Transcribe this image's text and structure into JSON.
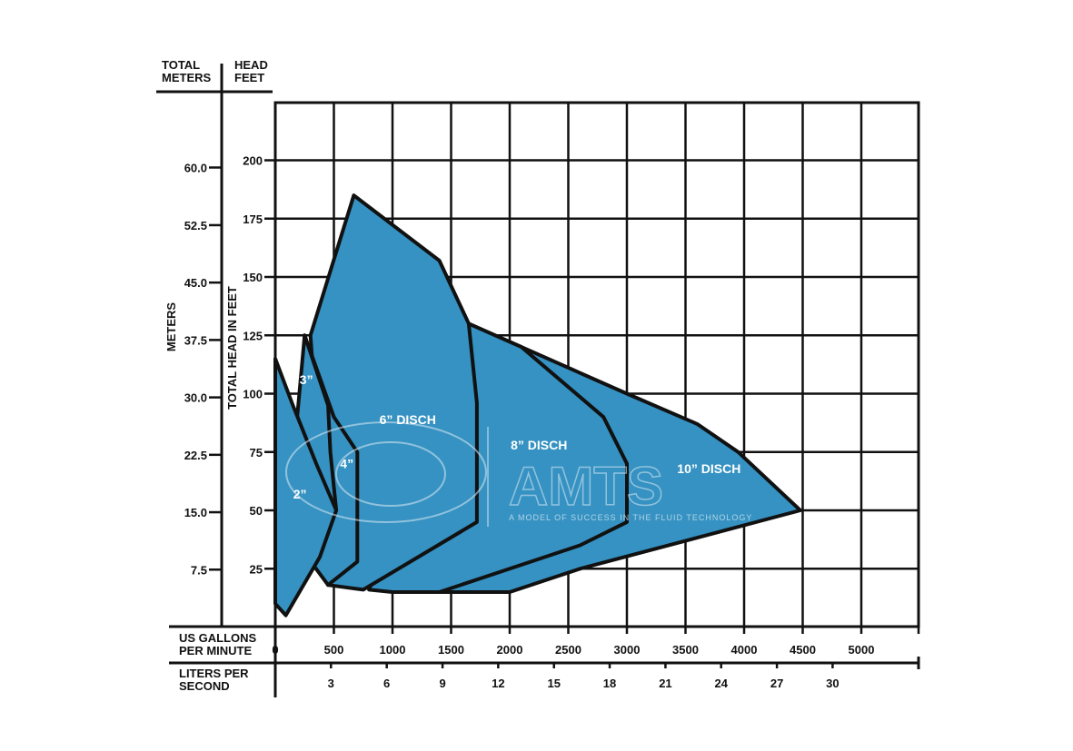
{
  "chart_data": {
    "type": "area",
    "header": {
      "meters_col": "TOTAL\nMETERS",
      "feet_col": "HEAD\nFEET"
    },
    "y_meters_label": "METERS",
    "y_feet_label": "TOTAL HEAD IN FEET",
    "x_gpm_label": "US GALLONS\nPER MINUTE",
    "x_lps_label": "LITERS PER\nSECOND",
    "ylim_feet": [
      -10,
      225
    ],
    "xlim_gpm": [
      0,
      5500
    ],
    "feet_ticks": [
      25,
      50,
      75,
      100,
      125,
      150,
      175,
      200
    ],
    "meter_ticks": [
      {
        "label": "7.5",
        "feet": 24.6
      },
      {
        "label": "15.0",
        "feet": 49.2
      },
      {
        "label": "22.5",
        "feet": 73.8
      },
      {
        "label": "30.0",
        "feet": 98.4
      },
      {
        "label": "37.5",
        "feet": 123.0
      },
      {
        "label": "45.0",
        "feet": 147.6
      },
      {
        "label": "52.5",
        "feet": 172.2
      },
      {
        "label": "60.0",
        "feet": 196.9
      }
    ],
    "gpm_ticks": [
      0,
      500,
      1000,
      1500,
      2000,
      2500,
      3000,
      3500,
      4000,
      4500,
      5000
    ],
    "lps_ticks": [
      {
        "label": "3",
        "gpm": 475
      },
      {
        "label": "6",
        "gpm": 951
      },
      {
        "label": "9",
        "gpm": 1427
      },
      {
        "label": "12",
        "gpm": 1902
      },
      {
        "label": "15",
        "gpm": 2378
      },
      {
        "label": "18",
        "gpm": 2853
      },
      {
        "label": "21",
        "gpm": 3329
      },
      {
        "label": "24",
        "gpm": 3804
      },
      {
        "label": "27",
        "gpm": 4280
      },
      {
        "label": "30",
        "gpm": 4755
      }
    ],
    "series": [
      {
        "name": "10” DISCH",
        "label_at": [
          3700,
          66
        ],
        "points": [
          [
            1650,
            130
          ],
          [
            2100,
            120
          ],
          [
            3000,
            100
          ],
          [
            3600,
            87
          ],
          [
            3950,
            75
          ],
          [
            4480,
            50
          ],
          [
            2600,
            25
          ],
          [
            2000,
            15
          ],
          [
            1400,
            15
          ],
          [
            1000,
            15
          ]
        ]
      },
      {
        "name": "8” DISCH",
        "label_at": [
          2250,
          76
        ],
        "points": [
          [
            1650,
            130
          ],
          [
            2100,
            120
          ],
          [
            2800,
            90
          ],
          [
            3000,
            70
          ],
          [
            3000,
            45
          ],
          [
            2600,
            35
          ],
          [
            1400,
            15
          ],
          [
            1000,
            15
          ],
          [
            800,
            16
          ]
        ]
      },
      {
        "name": "6” DISCH",
        "label_at": [
          1130,
          87
        ],
        "points": [
          [
            300,
            125
          ],
          [
            670,
            185
          ],
          [
            1400,
            157
          ],
          [
            1650,
            130
          ],
          [
            1720,
            96
          ],
          [
            1720,
            45
          ],
          [
            750,
            16
          ],
          [
            450,
            18
          ]
        ]
      },
      {
        "name": "4”",
        "label_at": [
          610,
          68
        ],
        "points": [
          [
            250,
            125
          ],
          [
            500,
            90
          ],
          [
            700,
            75
          ],
          [
            700,
            28
          ],
          [
            450,
            18
          ],
          [
            200,
            35
          ]
        ]
      },
      {
        "name": "3”",
        "label_at": [
          265,
          104
        ],
        "points": [
          [
            250,
            125
          ],
          [
            450,
            95
          ],
          [
            470,
            75
          ],
          [
            520,
            50
          ],
          [
            180,
            15
          ],
          [
            60,
            20
          ]
        ]
      },
      {
        "name": "2”",
        "label_at": [
          210,
          55
        ],
        "points": [
          [
            0,
            115
          ],
          [
            150,
            95
          ],
          [
            350,
            70
          ],
          [
            520,
            50
          ],
          [
            380,
            30
          ],
          [
            90,
            5
          ],
          [
            0,
            10
          ]
        ]
      }
    ],
    "colors": {
      "fill": "#3592c2",
      "line": "#111111",
      "grid": "#111111"
    },
    "watermark": {
      "text": "AMTS",
      "tagline": "A MODEL OF SUCCESS IN THE FLUID TECHNOLOGY"
    }
  }
}
